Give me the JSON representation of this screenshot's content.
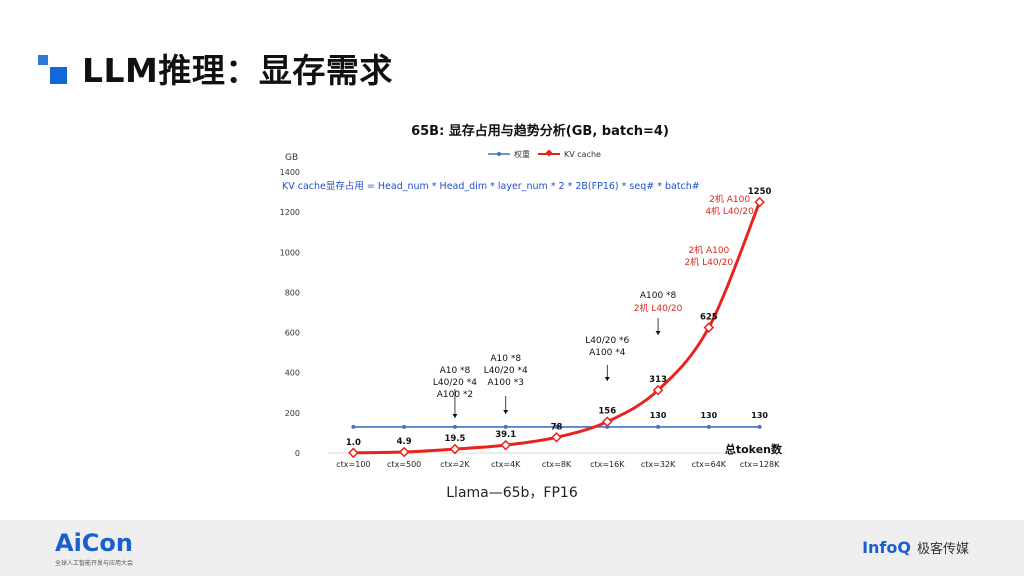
{
  "slide": {
    "title": "LLM推理：显存需求"
  },
  "footer": {
    "left_logo": "AiCon",
    "left_sub": "全球人工智能开发与应用大会",
    "right_logo": "InfoQ",
    "right_sub": "极客传媒"
  },
  "caption": "Llama—65b，FP16",
  "chart_data": {
    "type": "line",
    "title": "65B: 显存占用与趋势分析(GB, batch=4)",
    "ylabel": "GB",
    "xlabel": "总token数",
    "ylim": [
      0,
      1400
    ],
    "yticks": [
      0,
      200,
      400,
      600,
      800,
      1000,
      1200,
      1400
    ],
    "categories": [
      "ctx=100",
      "ctx=500",
      "ctx=2K",
      "ctx=4K",
      "ctx=8K",
      "ctx=16K",
      "ctx=32K",
      "ctx=64K",
      "ctx=128K"
    ],
    "series": [
      {
        "name": "权重",
        "color": "#4472c4",
        "values": [
          130,
          130,
          130,
          130,
          130,
          130,
          130,
          130,
          130
        ],
        "labels": [
          "",
          "",
          "",
          "",
          "",
          "",
          "130",
          "130",
          "130"
        ]
      },
      {
        "name": "KV cache",
        "color": "#e8231d",
        "values": [
          1.0,
          4.9,
          19.5,
          39.1,
          78,
          156,
          313,
          625,
          1250
        ],
        "labels": [
          "1.0",
          "4.9",
          "19.5",
          "39.1",
          "78",
          "156",
          "313",
          "625",
          "1250"
        ]
      }
    ],
    "formula": "KV cache显存占用 = Head_num * Head_dim * layer_num * 2 * 2B(FP16) * seq# * batch#",
    "annotations": [
      {
        "color": "black",
        "lines": [
          "A10      *8",
          "L40/20 *4",
          "A100    *2"
        ]
      },
      {
        "color": "black",
        "lines": [
          "A10      *8",
          "L40/20 *4",
          "A100    *3"
        ]
      },
      {
        "color": "black",
        "lines": [
          "L40/20 *6",
          "A100    *4"
        ]
      },
      {
        "color": "black",
        "lines": [
          "A100 *8"
        ]
      },
      {
        "color": "red",
        "lines": [
          "2机 L40/20"
        ]
      },
      {
        "color": "red",
        "lines": [
          "2机 A100",
          "2机 L40/20"
        ]
      },
      {
        "color": "red",
        "lines": [
          "2机 A100",
          "4机 L40/20"
        ]
      }
    ]
  }
}
